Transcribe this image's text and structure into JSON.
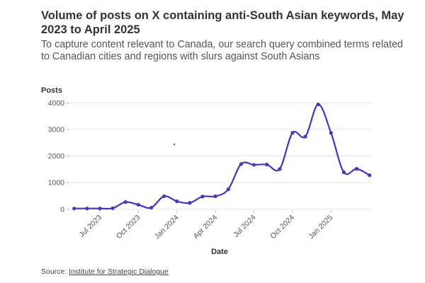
{
  "chart_data": {
    "type": "line",
    "title": "Volume of posts on X containing anti-South Asian keywords, May 2023 to April 2025",
    "subtitle": "To capture content relevant to Canada, our search query combined terms related to Canadian cities and regions with slurs against South Asians",
    "xlabel": "Date",
    "ylabel": "Posts",
    "ylim": [
      0,
      4000
    ],
    "yticks": [
      "0",
      "1000",
      "2000",
      "3000",
      "4000"
    ],
    "ytick_values": [
      0,
      1000,
      2000,
      3000,
      4000
    ],
    "grid": true,
    "x": [
      "May 2023",
      "Jun 2023",
      "Jul 2023",
      "Aug 2023",
      "Sep 2023",
      "Oct 2023",
      "Nov 2023",
      "Dec 2023",
      "Jan 2024",
      "Feb 2024",
      "Mar 2024",
      "Apr 2024",
      "May 2024",
      "Jun 2024",
      "Jul 2024",
      "Aug 2024",
      "Sep 2024",
      "Oct 2024",
      "Nov 2024",
      "Dec 2024",
      "Jan 2025",
      "Feb 2025",
      "Mar 2025",
      "Apr 2025"
    ],
    "xticks": [
      {
        "label": "Jul 2023",
        "index": 2
      },
      {
        "label": "Oct 2023",
        "index": 5
      },
      {
        "label": "Jan 2024",
        "index": 8
      },
      {
        "label": "Apr 2024",
        "index": 11
      },
      {
        "label": "Jul 2024",
        "index": 14
      },
      {
        "label": "Oct 2024",
        "index": 17
      },
      {
        "label": "Jan 2025",
        "index": 20
      }
    ],
    "series": [
      {
        "name": "Posts",
        "color": "#4433cc",
        "values": [
          30,
          30,
          30,
          40,
          270,
          170,
          60,
          490,
          300,
          240,
          480,
          490,
          750,
          1700,
          1670,
          1680,
          1510,
          2870,
          2730,
          3940,
          2870,
          1390,
          1520,
          1280
        ]
      }
    ]
  },
  "source": {
    "label": "Source:",
    "link_text": "Institute for Strategic Dialogue"
  }
}
